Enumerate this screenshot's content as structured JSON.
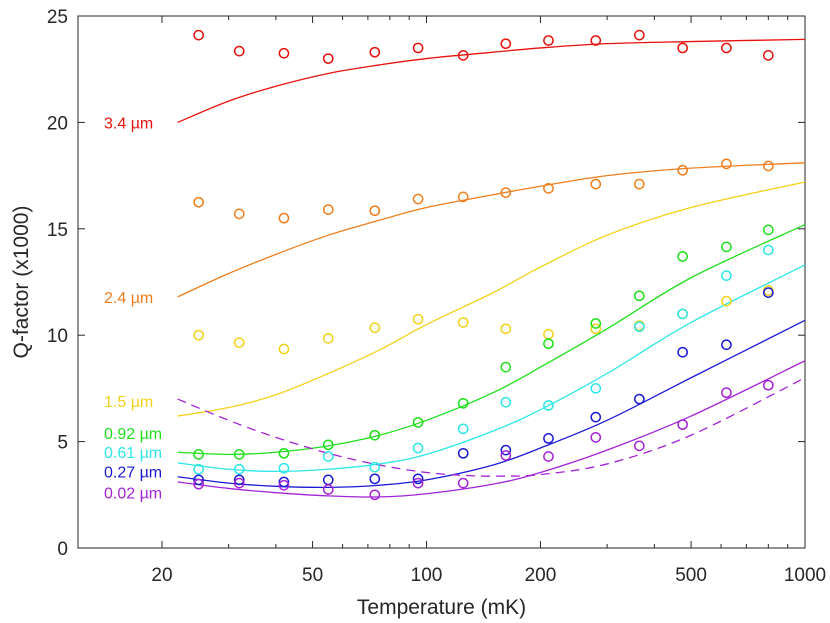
{
  "chart_data": {
    "type": "scatter",
    "title": "",
    "xlabel": "Temperature (mK)",
    "ylabel": "Q-factor (x1000)",
    "xscale": "log",
    "xlim": [
      12,
      1000
    ],
    "ylim": [
      0,
      25
    ],
    "xticks": [
      20,
      50,
      100,
      200,
      500,
      1000
    ],
    "xtick_labels": [
      "20",
      "50",
      "100",
      "200",
      "500",
      "1000"
    ],
    "yticks": [
      0,
      5,
      10,
      15,
      20,
      25
    ],
    "ytick_labels": [
      "0",
      "5",
      "10",
      "15",
      "20",
      "25"
    ],
    "x": [
      25,
      32,
      42,
      55,
      73,
      95,
      125,
      162,
      210,
      280,
      365,
      475,
      620,
      800
    ],
    "series": [
      {
        "name": "3.4 µm",
        "label": "3.4 µm",
        "color": "#e8120c",
        "points": [
          24.1,
          23.35,
          23.25,
          23.0,
          23.3,
          23.5,
          23.15,
          23.7,
          23.85,
          23.85,
          24.1,
          23.5,
          23.5,
          23.15
        ],
        "fit": {
          "x": [
            22,
            30,
            40,
            55,
            75,
            100,
            150,
            200,
            300,
            500,
            1000
          ],
          "y": [
            20.0,
            21.0,
            21.7,
            22.3,
            22.7,
            23.0,
            23.3,
            23.5,
            23.7,
            23.8,
            23.9
          ]
        }
      },
      {
        "name": "2.4 µm",
        "label": "2.4 µm",
        "color": "#f07e1c",
        "points": [
          16.25,
          15.7,
          15.5,
          15.9,
          15.85,
          16.4,
          16.5,
          16.7,
          16.9,
          17.1,
          17.1,
          17.75,
          18.05,
          17.95
        ],
        "fit": {
          "x": [
            22,
            30,
            40,
            55,
            75,
            100,
            150,
            200,
            300,
            500,
            1000
          ],
          "y": [
            11.8,
            12.9,
            13.8,
            14.7,
            15.4,
            16.0,
            16.6,
            17.0,
            17.5,
            17.85,
            18.1
          ]
        }
      },
      {
        "name": "1.5 µm",
        "label": "1.5 µm",
        "color": "#f2d21a",
        "points": [
          10.0,
          9.65,
          9.35,
          9.85,
          10.35,
          10.75,
          10.6,
          10.3,
          10.05,
          10.3,
          10.45,
          11.0,
          11.6,
          12.1
        ],
        "fit": {
          "x": [
            22,
            30,
            40,
            55,
            75,
            100,
            150,
            200,
            300,
            500,
            1000
          ],
          "y": [
            6.2,
            6.6,
            7.2,
            8.2,
            9.3,
            10.5,
            12.0,
            13.2,
            14.7,
            16.0,
            17.2
          ]
        }
      },
      {
        "name": "0.92 µm",
        "label": "0.92 µm",
        "color": "#1ee01a",
        "points": [
          4.4,
          4.4,
          4.45,
          4.85,
          5.3,
          5.9,
          6.8,
          8.5,
          9.6,
          10.55,
          11.85,
          13.7,
          14.15,
          14.95
        ],
        "fit": {
          "x": [
            22,
            30,
            40,
            55,
            75,
            100,
            150,
            200,
            300,
            500,
            1000
          ],
          "y": [
            4.5,
            4.4,
            4.5,
            4.8,
            5.3,
            6.0,
            7.3,
            8.5,
            10.3,
            12.7,
            15.2
          ]
        }
      },
      {
        "name": "0.61 µm",
        "label": "0.61 µm",
        "color": "#2de6e6",
        "points": [
          3.7,
          3.7,
          3.75,
          4.3,
          3.8,
          4.7,
          5.6,
          6.85,
          6.7,
          7.5,
          10.4,
          11.0,
          12.8,
          14.0
        ],
        "fit": {
          "x": [
            22,
            30,
            40,
            55,
            75,
            100,
            150,
            200,
            300,
            500,
            1000
          ],
          "y": [
            4.0,
            3.7,
            3.6,
            3.7,
            3.95,
            4.4,
            5.5,
            6.5,
            8.2,
            10.6,
            13.3
          ]
        }
      },
      {
        "name": "0.27 µm",
        "label": "0.27 µm",
        "color": "#1a1ad6",
        "points": [
          3.2,
          3.2,
          3.1,
          3.2,
          3.25,
          3.25,
          4.45,
          4.6,
          5.15,
          6.15,
          7.0,
          9.2,
          9.55,
          12.0
        ],
        "fit": {
          "x": [
            22,
            30,
            40,
            55,
            75,
            100,
            150,
            200,
            300,
            500,
            1000
          ],
          "y": [
            3.35,
            3.05,
            2.9,
            2.85,
            2.95,
            3.2,
            3.9,
            4.7,
            6.0,
            8.0,
            10.7
          ]
        }
      },
      {
        "name": "0.02 µm",
        "label": "0.02 µm",
        "color": "#a423d6",
        "points": [
          3.0,
          3.05,
          2.95,
          2.75,
          2.5,
          3.05,
          3.05,
          4.35,
          4.3,
          5.2,
          4.8,
          5.8,
          7.3,
          7.65
        ],
        "fit": {
          "x": [
            22,
            30,
            40,
            55,
            75,
            100,
            150,
            200,
            300,
            500,
            1000
          ],
          "y": [
            3.1,
            2.8,
            2.6,
            2.45,
            2.4,
            2.55,
            3.0,
            3.55,
            4.6,
            6.2,
            8.8
          ]
        }
      }
    ],
    "dashed_curve": {
      "color": "#a423d6",
      "x": [
        22,
        30,
        40,
        55,
        75,
        100,
        130,
        160,
        200,
        300,
        500,
        1000
      ],
      "y": [
        7.0,
        6.0,
        5.2,
        4.45,
        3.9,
        3.55,
        3.4,
        3.38,
        3.45,
        3.95,
        5.3,
        8.0
      ]
    }
  }
}
